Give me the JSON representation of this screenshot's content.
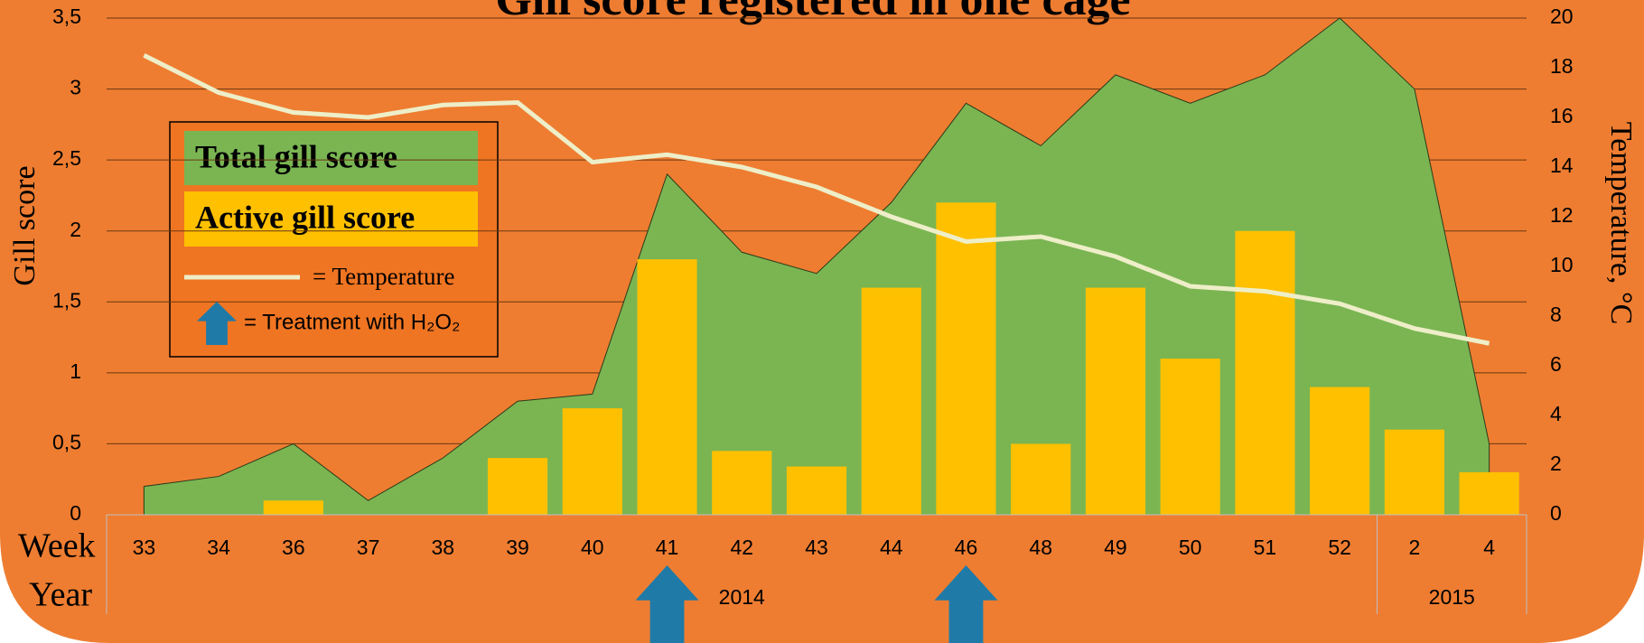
{
  "chart_data": {
    "type": "bar_area_line",
    "title": "Gill score registered in one cage",
    "y_label": "Gill score",
    "y2_label": "Temperature, °C",
    "x_row_label": "Week",
    "year_row_label": "Year",
    "categories": [
      "33",
      "34",
      "36",
      "37",
      "38",
      "39",
      "40",
      "41",
      "42",
      "43",
      "44",
      "46",
      "48",
      "49",
      "50",
      "51",
      "52",
      "2",
      "4"
    ],
    "years": [
      {
        "label": "2014",
        "count": 17
      },
      {
        "label": "2015",
        "count": 2
      }
    ],
    "series": [
      {
        "name": "Total gill score",
        "kind": "area",
        "color": "#7ab552",
        "values": [
          0.2,
          0.27,
          0.5,
          0.1,
          0.4,
          0.8,
          0.85,
          2.4,
          1.85,
          1.7,
          2.2,
          2.9,
          2.6,
          3.1,
          2.9,
          3.1,
          3.5,
          3.0,
          0.5
        ]
      },
      {
        "name": "Active gill score",
        "kind": "bar",
        "color": "#ffc000",
        "values": [
          0,
          0,
          0.1,
          0,
          0,
          0.4,
          0.75,
          1.8,
          0.45,
          0.34,
          1.6,
          2.2,
          0.5,
          1.6,
          1.1,
          2.0,
          0.9,
          0.6,
          0.3
        ]
      },
      {
        "name": "= Temperature",
        "kind": "line",
        "axis": "y2",
        "color": "#eeeec8",
        "values": [
          18.5,
          17,
          16.2,
          16,
          16.5,
          16.6,
          14.2,
          14.5,
          14,
          13.2,
          12,
          11,
          11.2,
          10.4,
          9.2,
          9,
          8.5,
          7.5,
          6.9
        ]
      }
    ],
    "treatment_label": "= Treatment with H₂O₂",
    "treatment_color": "#1f7aa8",
    "treatments": [
      "41",
      "46"
    ],
    "ylim": [
      0,
      3.5
    ],
    "yticks": [
      0,
      {
        "value": 0.5,
        "label": "0,5"
      },
      1,
      {
        "value": 1.5,
        "label": "1,5"
      },
      2,
      {
        "value": 2.5,
        "label": "2,5"
      },
      3,
      {
        "value": 3.5,
        "label": "3,5"
      }
    ],
    "y2lim": [
      0,
      20
    ],
    "y2ticks": [
      0,
      2,
      4,
      6,
      8,
      10,
      12,
      14,
      16,
      18,
      20
    ],
    "grid": true,
    "background": "#ee7d31"
  }
}
